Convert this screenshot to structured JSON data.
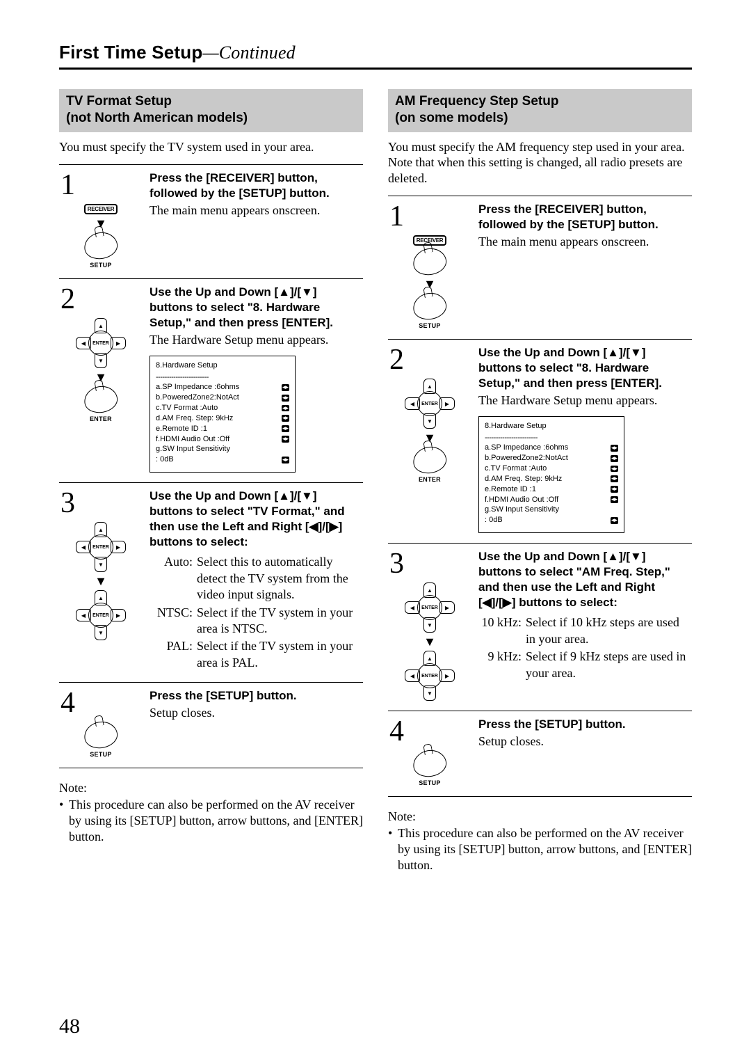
{
  "page": {
    "title_main": "First Time Setup",
    "title_cont": "—Continued",
    "page_number": "48"
  },
  "left": {
    "header": "TV Format Setup\n(not North American models)",
    "intro": "You must specify the TV system used in your area.",
    "steps": [
      {
        "num": "1",
        "bold": "Press the [RECEIVER] button, followed by the [SETUP] button.",
        "plain": "The main menu appears onscreen.",
        "icons": [
          "receiver",
          "arrow",
          "hand",
          "setup"
        ]
      },
      {
        "num": "2",
        "bold": "Use the Up and Down [▲]/[▼] buttons to select \"8. Hardware Setup,\" and then press [ENTER].",
        "plain": "The Hardware Setup menu appears.",
        "screen": {
          "title": "8.Hardware Setup",
          "rows": [
            "a.SP Impedance :6ohms",
            "b.PoweredZone2:NotAct",
            "c.TV Format    :Auto",
            "d.AM Freq. Step: 9kHz",
            "e.Remote ID      :1",
            "f.HDMI Audio Out :Off",
            "g.SW Input Sensitivity",
            "               : 0dB"
          ]
        },
        "icons": [
          "dpad",
          "arrow",
          "hand-enter"
        ]
      },
      {
        "num": "3",
        "bold": "Use the Up and Down [▲]/[▼] buttons to select \"TV Format,\" and then use the Left and Right [◀]/[▶] buttons to select:",
        "options": [
          {
            "label": "Auto:",
            "text": "Select this to automatically detect the TV system from the video input signals."
          },
          {
            "label": "NTSC:",
            "text": "Select if the TV system in your area is NTSC."
          },
          {
            "label": "PAL:",
            "text": "Select if the TV system in your area is PAL."
          }
        ],
        "icons": [
          "dpad",
          "arrow",
          "dpad"
        ]
      },
      {
        "num": "4",
        "bold": "Press the [SETUP] button.",
        "plain": "Setup closes.",
        "icons": [
          "hand",
          "setup"
        ]
      }
    ],
    "note_label": "Note:",
    "note_text": "This procedure can also be performed on the AV receiver by using its [SETUP] button, arrow buttons, and [ENTER] button."
  },
  "right": {
    "header": "AM Frequency Step Setup\n(on some models)",
    "intro": "You must specify the AM frequency step used in your area. Note that when this setting is changed, all radio presets are deleted.",
    "steps": [
      {
        "num": "1",
        "bold": "Press the [RECEIVER] button, followed by the [SETUP] button.",
        "plain": "The main menu appears onscreen.",
        "icons": [
          "receiver",
          "hand",
          "arrow",
          "hand",
          "setup"
        ]
      },
      {
        "num": "2",
        "bold": "Use the Up and Down [▲]/[▼] buttons to select \"8. Hardware Setup,\" and then press [ENTER].",
        "plain": "The Hardware Setup menu appears.",
        "screen": {
          "title": "8.Hardware Setup",
          "rows": [
            "a.SP Impedance :6ohms",
            "b.PoweredZone2:NotAct",
            "c.TV Format    :Auto",
            "d.AM Freq. Step: 9kHz",
            "e.Remote ID      :1",
            "f.HDMI Audio Out :Off",
            "g.SW Input Sensitivity",
            "               : 0dB"
          ]
        },
        "icons": [
          "dpad",
          "arrow",
          "hand-enter"
        ]
      },
      {
        "num": "3",
        "bold": "Use the Up and Down [▲]/[▼] buttons to select \"AM Freq. Step,\" and then use the Left and Right [◀]/[▶] buttons to select:",
        "options": [
          {
            "label": "10 kHz:",
            "text": "Select if 10 kHz steps are used in your area."
          },
          {
            "label": "9 kHz:",
            "text": "Select if 9 kHz steps are used in your area."
          }
        ],
        "icons": [
          "dpad",
          "arrow",
          "dpad"
        ]
      },
      {
        "num": "4",
        "bold": "Press the [SETUP] button.",
        "plain": "Setup closes.",
        "icons": [
          "hand",
          "setup"
        ]
      }
    ],
    "note_label": "Note:",
    "note_text": "This procedure can also be performed on the AV receiver by using its [SETUP] button, arrow buttons, and [ENTER] button."
  },
  "icon_labels": {
    "receiver": "RECEIVER",
    "setup": "SETUP",
    "enter": "ENTER"
  }
}
